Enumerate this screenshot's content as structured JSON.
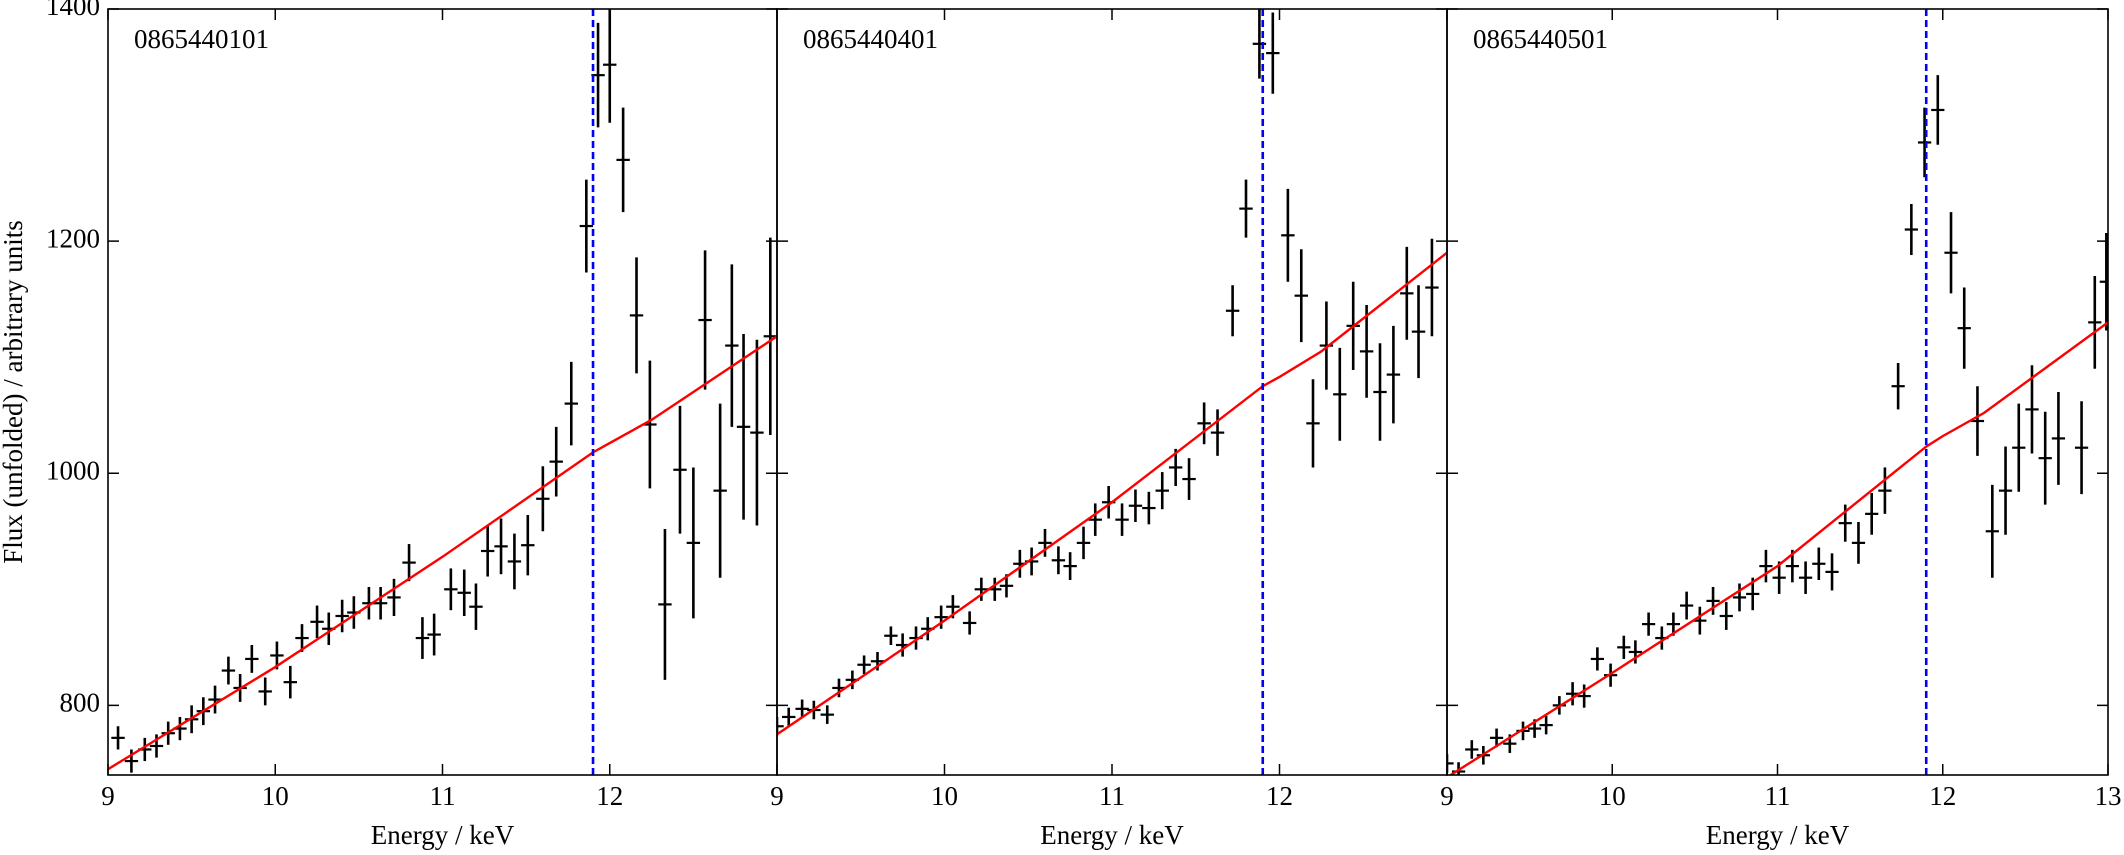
{
  "chart_data": [
    {
      "type": "errorbar",
      "title": "0865440101",
      "xlabel": "Energy / keV",
      "ylabel": "Flux (unfolded) / arbitrary units",
      "xlim": [
        9,
        13
      ],
      "ylim": [
        740,
        1400
      ],
      "xticks": [
        9,
        10,
        11,
        12
      ],
      "yticks": [
        800,
        1000,
        1200,
        1400
      ],
      "show_ytick_labels": true,
      "vline": {
        "x": 11.9,
        "color": "#0000ff"
      },
      "series": [
        {
          "color": "#000000",
          "xerr": 0.04,
          "x": [
            9.06,
            9.14,
            9.22,
            9.29,
            9.36,
            9.43,
            9.5,
            9.57,
            9.64,
            9.72,
            9.79,
            9.86,
            9.94,
            10.01,
            10.09,
            10.16,
            10.25,
            10.32,
            10.4,
            10.47,
            10.56,
            10.63,
            10.71,
            10.8,
            10.88,
            10.95,
            11.05,
            11.13,
            11.2,
            11.27,
            11.35,
            11.43,
            11.51,
            11.6,
            11.68,
            11.77,
            11.86,
            11.93,
            12.0,
            12.08,
            12.16,
            12.24,
            12.33,
            12.42,
            12.5,
            12.57,
            12.66,
            12.73,
            12.8,
            12.88,
            12.96
          ],
          "values": [
            772,
            752,
            762,
            765,
            776,
            780,
            788,
            795,
            805,
            830,
            815,
            840,
            812,
            843,
            820,
            858,
            872,
            866,
            877,
            880,
            888,
            888,
            893,
            923,
            858,
            861,
            900,
            897,
            885,
            933,
            937,
            924,
            938,
            978,
            1010,
            1060,
            1213,
            1343,
            1352,
            1270,
            1136,
            1042,
            887,
            1003,
            940,
            1132,
            985,
            1110,
            1040,
            1035,
            1118
          ],
          "errors": [
            10,
            10,
            10,
            10,
            10,
            10,
            12,
            12,
            12,
            12,
            12,
            12,
            12,
            12,
            14,
            12,
            14,
            14,
            14,
            14,
            14,
            14,
            16,
            16,
            18,
            18,
            18,
            20,
            20,
            22,
            24,
            24,
            26,
            28,
            30,
            36,
            40,
            45,
            50,
            45,
            50,
            55,
            65,
            55,
            65,
            60,
            75,
            70,
            80,
            80,
            85
          ]
        },
        {
          "color": "#ff0000",
          "x": [
            9,
            10,
            11,
            11.9,
            12,
            12.25,
            13
          ],
          "values": [
            745,
            833,
            928,
            1018,
            1026,
            1046,
            1118
          ]
        }
      ]
    },
    {
      "type": "errorbar",
      "title": "0865440401",
      "xlabel": "Energy / keV",
      "xlim": [
        9,
        13
      ],
      "ylim": [
        740,
        1400
      ],
      "xticks": [
        9,
        10,
        11,
        12
      ],
      "yticks": [
        800,
        1000,
        1200,
        1400
      ],
      "show_ytick_labels": false,
      "vline": {
        "x": 11.9,
        "color": "#0000ff"
      },
      "series": [
        {
          "color": "#000000",
          "xerr": 0.04,
          "x": [
            9.0,
            9.07,
            9.15,
            9.22,
            9.3,
            9.37,
            9.45,
            9.52,
            9.6,
            9.68,
            9.75,
            9.83,
            9.9,
            9.98,
            10.05,
            10.15,
            10.22,
            10.3,
            10.37,
            10.45,
            10.52,
            10.6,
            10.68,
            10.75,
            10.83,
            10.9,
            10.98,
            11.06,
            11.14,
            11.22,
            11.3,
            11.38,
            11.46,
            11.55,
            11.63,
            11.72,
            11.8,
            11.88,
            11.96,
            12.05,
            12.13,
            12.2,
            12.28,
            12.36,
            12.44,
            12.52,
            12.6,
            12.68,
            12.76,
            12.83,
            12.91
          ],
          "values": [
            782,
            790,
            797,
            796,
            792,
            815,
            822,
            835,
            838,
            860,
            852,
            858,
            866,
            876,
            885,
            871,
            900,
            900,
            903,
            922,
            924,
            940,
            925,
            920,
            940,
            960,
            975,
            960,
            972,
            970,
            985,
            1005,
            995,
            1043,
            1035,
            1140,
            1228,
            1370,
            1362,
            1205,
            1153,
            1043,
            1110,
            1068,
            1127,
            1105,
            1070,
            1085,
            1155,
            1122,
            1160
          ],
          "errors": [
            8,
            8,
            8,
            8,
            8,
            8,
            8,
            8,
            8,
            8,
            10,
            10,
            10,
            10,
            10,
            10,
            10,
            10,
            10,
            12,
            12,
            12,
            12,
            12,
            14,
            14,
            14,
            14,
            14,
            14,
            16,
            16,
            18,
            18,
            20,
            22,
            25,
            30,
            35,
            40,
            40,
            38,
            38,
            40,
            38,
            40,
            42,
            42,
            40,
            40,
            42
          ]
        },
        {
          "color": "#ff0000",
          "x": [
            9,
            10,
            11,
            11.9,
            12,
            12.25,
            13
          ],
          "values": [
            775,
            873,
            975,
            1075,
            1083,
            1105,
            1190
          ]
        }
      ]
    },
    {
      "type": "errorbar",
      "title": "0865440501",
      "xlabel": "Energy / keV",
      "xlim": [
        9,
        13
      ],
      "ylim": [
        740,
        1400
      ],
      "xticks": [
        9,
        10,
        11,
        12,
        13
      ],
      "yticks": [
        800,
        1000,
        1200,
        1400
      ],
      "show_ytick_labels": false,
      "vline": {
        "x": 11.9,
        "color": "#0000ff"
      },
      "series": [
        {
          "color": "#000000",
          "xerr": 0.04,
          "x": [
            9.0,
            9.07,
            9.15,
            9.22,
            9.3,
            9.38,
            9.46,
            9.53,
            9.6,
            9.68,
            9.76,
            9.83,
            9.91,
            9.99,
            10.07,
            10.14,
            10.22,
            10.3,
            10.37,
            10.45,
            10.53,
            10.61,
            10.69,
            10.77,
            10.85,
            10.93,
            11.01,
            11.09,
            11.17,
            11.25,
            11.33,
            11.41,
            11.49,
            11.57,
            11.65,
            11.73,
            11.81,
            11.89,
            11.97,
            12.05,
            12.13,
            12.21,
            12.3,
            12.38,
            12.46,
            12.54,
            12.62,
            12.7,
            12.84,
            12.92,
            12.99
          ],
          "values": [
            750,
            743,
            762,
            757,
            772,
            767,
            778,
            780,
            783,
            800,
            810,
            808,
            840,
            826,
            850,
            846,
            870,
            858,
            870,
            886,
            873,
            890,
            877,
            893,
            896,
            920,
            910,
            920,
            910,
            922,
            915,
            957,
            940,
            965,
            985,
            1075,
            1210,
            1285,
            1313,
            1190,
            1125,
            1045,
            950,
            985,
            1022,
            1055,
            1013,
            1030,
            1022,
            1130,
            1165
          ],
          "errors": [
            8,
            8,
            8,
            8,
            8,
            8,
            8,
            8,
            8,
            8,
            10,
            10,
            10,
            10,
            10,
            10,
            10,
            10,
            10,
            12,
            12,
            12,
            12,
            12,
            14,
            14,
            14,
            14,
            14,
            14,
            16,
            16,
            18,
            18,
            20,
            20,
            22,
            30,
            30,
            35,
            35,
            30,
            40,
            38,
            38,
            38,
            40,
            40,
            40,
            40,
            42
          ]
        },
        {
          "color": "#ff0000",
          "x": [
            9,
            10,
            11,
            11.9,
            12,
            12.25,
            13
          ],
          "values": [
            738,
            828,
            920,
            1023,
            1032,
            1052,
            1130
          ]
        }
      ]
    }
  ]
}
